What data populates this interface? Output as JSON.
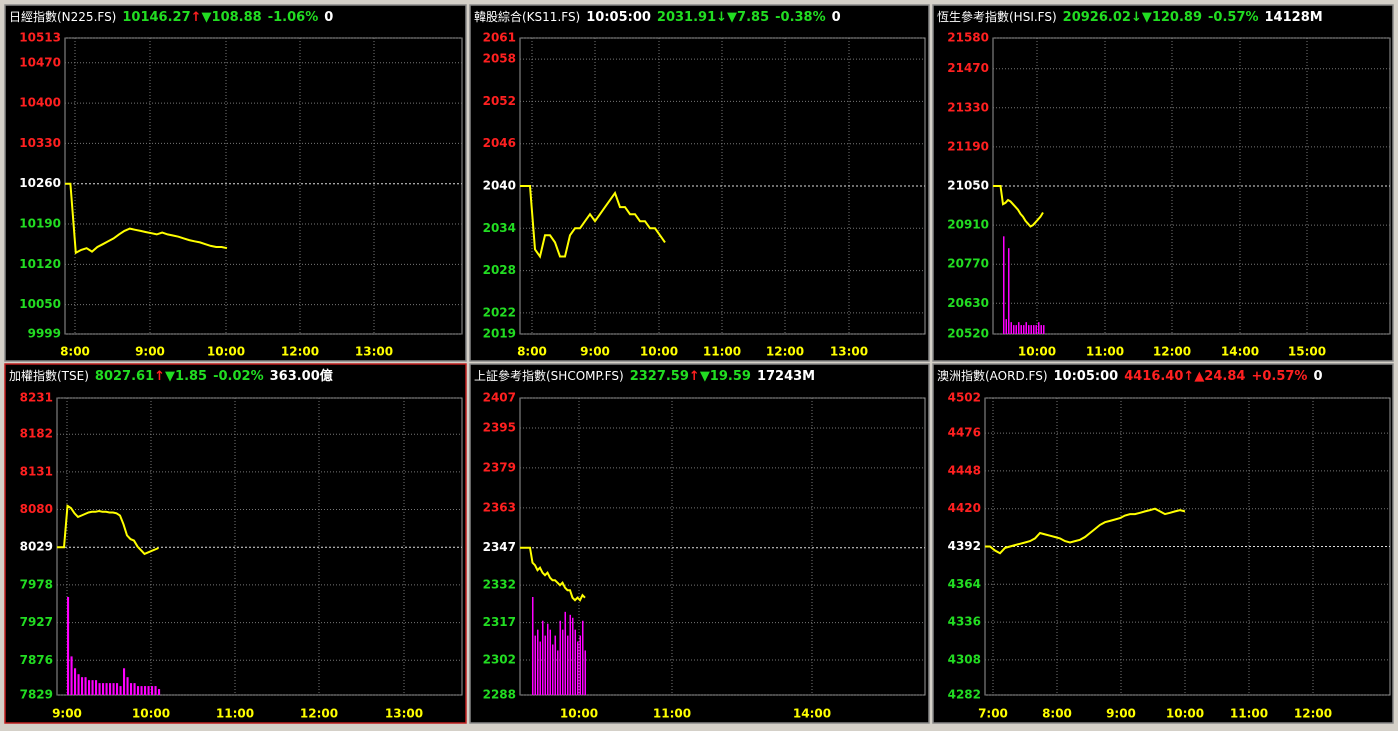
{
  "chart_data": [
    {
      "type": "line",
      "header": [
        {
          "text": "日經指數(N225.FS)",
          "color": "#ffffff"
        },
        {
          "text": "10146.27",
          "color": "#22dd22"
        },
        {
          "text": "↑",
          "color": "#ff2020"
        },
        {
          "text": "▼108.88",
          "color": "#22dd22"
        },
        {
          "text": "-1.06%",
          "color": "#22dd22"
        },
        {
          "text": "0",
          "color": "#ffffff"
        }
      ],
      "xticks": [
        "8:00",
        "9:00",
        "10:00",
        "12:00",
        "13:00"
      ],
      "ylim": [
        9999,
        10513
      ],
      "yticks": [
        10513,
        10470,
        10400,
        10330,
        10260,
        10190,
        10120,
        10050,
        9999
      ],
      "ref_line": 10260,
      "series": [
        {
          "color": "#ffff00",
          "values": [
            10260,
            10260,
            10140,
            10145,
            10148,
            10142,
            10150,
            10155,
            10160,
            10165,
            10172,
            10178,
            10182,
            10180,
            10178,
            10176,
            10174,
            10172,
            10175,
            10172,
            10170,
            10168,
            10165,
            10162,
            10160,
            10158,
            10155,
            10152,
            10150,
            10150,
            10148
          ]
        }
      ]
    },
    {
      "type": "line",
      "header": [
        {
          "text": "韓股綜合(KS11.FS)",
          "color": "#ffffff"
        },
        {
          "text": "10:05:00",
          "color": "#ffffff"
        },
        {
          "text": "2031.91",
          "color": "#22dd22"
        },
        {
          "text": "↓",
          "color": "#22dd22"
        },
        {
          "text": "▼7.85",
          "color": "#22dd22"
        },
        {
          "text": "-0.38%",
          "color": "#22dd22"
        },
        {
          "text": "0",
          "color": "#ffffff"
        }
      ],
      "xticks": [
        "8:00",
        "9:00",
        "10:00",
        "11:00",
        "12:00",
        "13:00"
      ],
      "ylim": [
        2019,
        2061
      ],
      "yticks": [
        2061,
        2058,
        2052,
        2046,
        2040,
        2034,
        2028,
        2022,
        2019
      ],
      "ref_line": 2040,
      "series": [
        {
          "color": "#ffff00",
          "values": [
            2040,
            2040,
            2040,
            2031,
            2030,
            2033,
            2033,
            2032,
            2030,
            2030,
            2033,
            2034,
            2034,
            2035,
            2036,
            2035,
            2036,
            2037,
            2038,
            2039,
            2037,
            2037,
            2036,
            2036,
            2035,
            2035,
            2034,
            2034,
            2033,
            2032
          ]
        }
      ]
    },
    {
      "type": "line",
      "header": [
        {
          "text": "恆生參考指數(HSI.FS)",
          "color": "#ffffff"
        },
        {
          "text": "20926.02",
          "color": "#22dd22"
        },
        {
          "text": "↓",
          "color": "#22dd22"
        },
        {
          "text": "▼120.89",
          "color": "#22dd22"
        },
        {
          "text": "-0.57%",
          "color": "#22dd22"
        },
        {
          "text": "14128M",
          "color": "#ffffff"
        }
      ],
      "xticks": [
        "10:00",
        "11:00",
        "12:00",
        "14:00",
        "15:00"
      ],
      "ylim": [
        20520,
        21580
      ],
      "yticks": [
        21580,
        21470,
        21330,
        21190,
        21050,
        20910,
        20770,
        20630,
        20520
      ],
      "ref_line": 21050,
      "series": [
        {
          "color": "#ffff00",
          "values": [
            21050,
            21050,
            21050,
            21050,
            20985,
            20990,
            21000,
            20995,
            20985,
            20975,
            20965,
            20950,
            20940,
            20925,
            20915,
            20905,
            20910,
            20920,
            20930,
            20940,
            20955
          ]
        }
      ],
      "volumes": {
        "color": "#ff00ff",
        "values": [
          33,
          5,
          29,
          4,
          3,
          3,
          4,
          3,
          3,
          4,
          3,
          3,
          3,
          3,
          4,
          3,
          3
        ]
      }
    },
    {
      "type": "line",
      "header": [
        {
          "text": "加權指數(TSE)",
          "color": "#ffffff"
        },
        {
          "text": "8027.61",
          "color": "#22dd22"
        },
        {
          "text": "↑",
          "color": "#ff2020"
        },
        {
          "text": "▼1.85",
          "color": "#22dd22"
        },
        {
          "text": "-0.02%",
          "color": "#22dd22"
        },
        {
          "text": "363.00億",
          "color": "#ffffff"
        }
      ],
      "xticks": [
        "9:00",
        "10:00",
        "11:00",
        "12:00",
        "13:00"
      ],
      "ylim": [
        7829,
        8231
      ],
      "yticks": [
        8231,
        8182,
        8131,
        8080,
        8029,
        7978,
        7927,
        7876,
        7829
      ],
      "ref_line": 8029,
      "series": [
        {
          "color": "#ffff00",
          "values": [
            8029,
            8029,
            8029,
            8085,
            8082,
            8075,
            8070,
            8072,
            8074,
            8076,
            8077,
            8077,
            8078,
            8077,
            8077,
            8076,
            8076,
            8075,
            8072,
            8060,
            8045,
            8040,
            8038,
            8030,
            8025,
            8020,
            8022,
            8024,
            8026,
            8028
          ]
        }
      ],
      "volumes": {
        "color": "#ff00ff",
        "values": [
          33,
          13,
          9,
          7,
          6,
          6,
          5,
          5,
          5,
          4,
          4,
          4,
          4,
          4,
          4,
          3,
          9,
          6,
          4,
          4,
          3,
          3,
          3,
          3,
          3,
          3,
          2
        ]
      }
    },
    {
      "type": "line",
      "header": [
        {
          "text": "上証參考指數(SHCOMP.FS)",
          "color": "#ffffff"
        },
        {
          "text": "2327.59",
          "color": "#22dd22"
        },
        {
          "text": "↑",
          "color": "#ff2020"
        },
        {
          "text": "▼19.59",
          "color": "#22dd22"
        },
        {
          "text": "17243M",
          "color": "#ffffff"
        }
      ],
      "xticks": [
        "10:00",
        "11:00",
        "14:00"
      ],
      "ylim": [
        2288,
        2407
      ],
      "yticks": [
        2407,
        2395,
        2379,
        2363,
        2347,
        2332,
        2317,
        2302,
        2288
      ],
      "ref_line": 2347,
      "series": [
        {
          "color": "#ffff00",
          "values": [
            2347,
            2347,
            2347,
            2347,
            2347,
            2341,
            2340,
            2338,
            2339,
            2337,
            2336,
            2337,
            2335,
            2334,
            2334,
            2333,
            2332,
            2333,
            2331,
            2330,
            2330,
            2327,
            2326,
            2327,
            2326,
            2328,
            2327
          ]
        }
      ],
      "volumes": {
        "color": "#ff00ff",
        "values": [
          33,
          20,
          22,
          18,
          25,
          20,
          24,
          22,
          17,
          20,
          15,
          25,
          22,
          28,
          20,
          27,
          26,
          22,
          18,
          20,
          25,
          15
        ]
      }
    },
    {
      "type": "line",
      "header": [
        {
          "text": "澳洲指數(AORD.FS)",
          "color": "#ffffff"
        },
        {
          "text": "10:05:00",
          "color": "#ffffff"
        },
        {
          "text": "4416.40",
          "color": "#ff2020"
        },
        {
          "text": "↑",
          "color": "#ff2020"
        },
        {
          "text": "▲24.84",
          "color": "#ff2020"
        },
        {
          "text": "+0.57%",
          "color": "#ff2020"
        },
        {
          "text": "0",
          "color": "#ffffff"
        }
      ],
      "xticks": [
        "7:00",
        "8:00",
        "9:00",
        "10:00",
        "11:00",
        "12:00"
      ],
      "ylim": [
        4282,
        4502
      ],
      "yticks": [
        4502,
        4476,
        4448,
        4420,
        4392,
        4364,
        4336,
        4308,
        4282
      ],
      "ref_line": 4392,
      "series": [
        {
          "color": "#ffff00",
          "values": [
            4392,
            4392,
            4389,
            4387,
            4391,
            4392,
            4393,
            4394,
            4395,
            4396,
            4398,
            4402,
            4401,
            4400,
            4399,
            4398,
            4396,
            4395,
            4396,
            4397,
            4399,
            4402,
            4405,
            4408,
            4410,
            4411,
            4412,
            4413,
            4415,
            4416,
            4416,
            4417,
            4418,
            4419,
            4420,
            4418,
            4416,
            4417,
            4418,
            4419,
            4418
          ]
        }
      ]
    }
  ]
}
